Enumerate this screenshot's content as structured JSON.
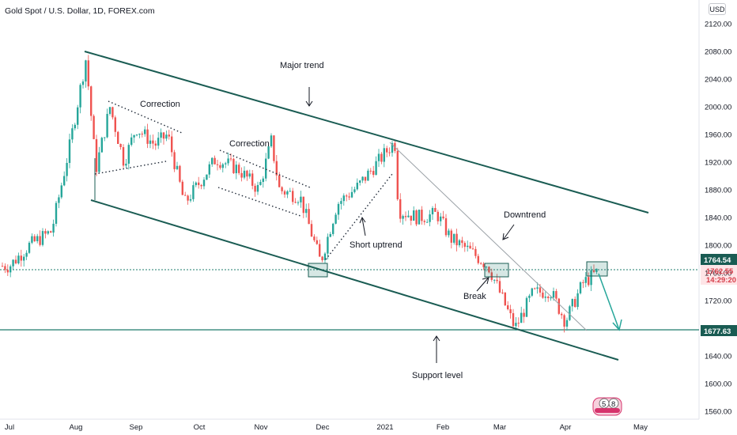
{
  "title": "Gold Spot / U.S. Dollar, 1D, FOREX.com",
  "currency": "USD",
  "chart_data": {
    "type": "candlestick",
    "y_ticks": [
      1560,
      1600,
      1640,
      1680,
      1720,
      1760,
      1800,
      1840,
      1880,
      1920,
      1960,
      2000,
      2040,
      2080,
      2120
    ],
    "y_tick_labels": [
      "1560.00",
      "1600.00",
      "1640.00",
      "1680.00",
      "1720.00",
      "1760.00",
      "1800.00",
      "1840.00",
      "1880.00",
      "1920.00",
      "1960.00",
      "2000.00",
      "2040.00",
      "2080.00",
      "2120.00"
    ],
    "ylim": [
      1555,
      2140
    ],
    "x_ticks": [
      "Jul",
      "Aug",
      "Sep",
      "Oct",
      "Nov",
      "Dec",
      "2021",
      "Feb",
      "Mar",
      "Apr",
      "May"
    ],
    "price_labels": [
      {
        "value": 1764.54,
        "text": "1764.54",
        "style": "dark"
      },
      {
        "value": 1762.55,
        "text": "1762.55",
        "style": "red"
      },
      {
        "value": 1677.63,
        "text": "1677.63",
        "style": "dark"
      }
    ],
    "countdown": "14:29:20",
    "horizontal_levels": [
      1677.63,
      1762.55
    ],
    "series": [
      {
        "x": "Jul 01",
        "y": 1770
      },
      {
        "x": "Jul 10",
        "y": 1800
      },
      {
        "x": "Jul 20",
        "y": 1820
      },
      {
        "x": "Jul 28",
        "y": 1940
      },
      {
        "x": "Aug 06",
        "y": 2070
      },
      {
        "x": "Aug 11",
        "y": 1910
      },
      {
        "x": "Aug 18",
        "y": 2000
      },
      {
        "x": "Aug 25",
        "y": 1920
      },
      {
        "x": "Sep 01",
        "y": 1970
      },
      {
        "x": "Sep 10",
        "y": 1945
      },
      {
        "x": "Sep 16",
        "y": 1960
      },
      {
        "x": "Sep 24",
        "y": 1860
      },
      {
        "x": "Oct 01",
        "y": 1890
      },
      {
        "x": "Oct 09",
        "y": 1925
      },
      {
        "x": "Oct 20",
        "y": 1910
      },
      {
        "x": "Oct 30",
        "y": 1880
      },
      {
        "x": "Nov 06",
        "y": 1950
      },
      {
        "x": "Nov 10",
        "y": 1880
      },
      {
        "x": "Nov 20",
        "y": 1870
      },
      {
        "x": "Nov 30",
        "y": 1775
      },
      {
        "x": "Dec 08",
        "y": 1860
      },
      {
        "x": "Dec 18",
        "y": 1885
      },
      {
        "x": "Jan 06",
        "y": 1950
      },
      {
        "x": "Jan 08",
        "y": 1850
      },
      {
        "x": "Jan 18",
        "y": 1840
      },
      {
        "x": "Jan 28",
        "y": 1845
      },
      {
        "x": "Feb 05",
        "y": 1810
      },
      {
        "x": "Feb 16",
        "y": 1790
      },
      {
        "x": "Feb 25",
        "y": 1770
      },
      {
        "x": "Mar 08",
        "y": 1680
      },
      {
        "x": "Mar 16",
        "y": 1730
      },
      {
        "x": "Mar 24",
        "y": 1735
      },
      {
        "x": "Mar 31",
        "y": 1690
      },
      {
        "x": "Apr 08",
        "y": 1745
      },
      {
        "x": "Apr 14",
        "y": 1762
      }
    ],
    "annotations": [
      "Major trend",
      "Correction",
      "Correction",
      "Short uptrend",
      "Downtrend",
      "Break",
      "Support level"
    ],
    "colors": {
      "up": "#26a69a",
      "down": "#ef5350",
      "trend": "#1a5c53",
      "level": "#1e7b6c",
      "marker": "#d6336c"
    }
  },
  "watermark": {
    "left": "5",
    "right": "8"
  }
}
